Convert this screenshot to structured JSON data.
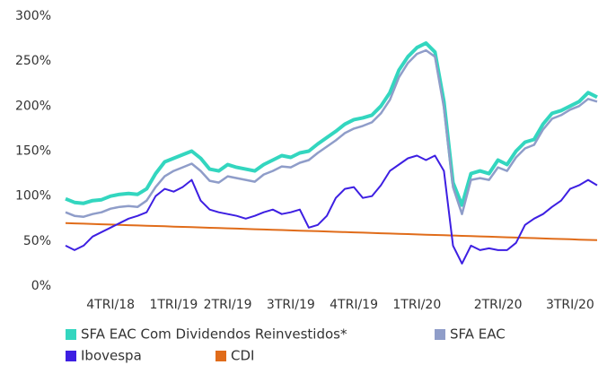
{
  "chart_data": {
    "type": "line",
    "categories": [
      null,
      null,
      null,
      null,
      null,
      "4TRI/18",
      null,
      null,
      null,
      null,
      null,
      null,
      "1TRI/19",
      null,
      null,
      null,
      null,
      null,
      "2TRI/19",
      null,
      null,
      null,
      null,
      null,
      null,
      "3TRI/19",
      null,
      null,
      null,
      null,
      null,
      null,
      "4TRI/19",
      null,
      null,
      null,
      null,
      null,
      null,
      "1TRI/20",
      null,
      null,
      null,
      null,
      null,
      null,
      null,
      null,
      "2TRI/20",
      null,
      null,
      null,
      null,
      null,
      null,
      null,
      "3TRI/20",
      null,
      null,
      null
    ],
    "series": [
      {
        "name": "SFA EAC Com Dividendos Reinvestidos*",
        "color": "#33d6bf",
        "values": [
          97,
          93,
          92,
          95,
          96,
          100,
          102,
          103,
          102,
          108,
          125,
          138,
          142,
          146,
          150,
          142,
          130,
          128,
          135,
          132,
          130,
          128,
          135,
          140,
          145,
          143,
          148,
          150,
          158,
          165,
          172,
          180,
          185,
          187,
          190,
          200,
          215,
          240,
          255,
          265,
          270,
          260,
          205,
          115,
          90,
          125,
          128,
          125,
          140,
          135,
          150,
          160,
          163,
          180,
          192,
          195,
          200,
          205,
          215,
          210
        ]
      },
      {
        "name": "SFA EAC",
        "color": "#8f9dc9",
        "values": [
          82,
          78,
          77,
          80,
          82,
          86,
          88,
          89,
          88,
          95,
          110,
          122,
          128,
          132,
          136,
          128,
          117,
          115,
          122,
          120,
          118,
          116,
          124,
          128,
          133,
          132,
          137,
          140,
          148,
          155,
          162,
          170,
          175,
          178,
          182,
          192,
          207,
          232,
          248,
          258,
          262,
          255,
          198,
          110,
          80,
          118,
          120,
          118,
          132,
          128,
          143,
          153,
          157,
          174,
          186,
          190,
          196,
          200,
          208,
          205
        ]
      },
      {
        "name": "Ibovespa",
        "color": "#3d1fe2",
        "values": [
          45,
          40,
          45,
          55,
          60,
          65,
          70,
          75,
          78,
          82,
          100,
          108,
          105,
          110,
          118,
          95,
          85,
          82,
          80,
          78,
          75,
          78,
          82,
          85,
          80,
          82,
          85,
          65,
          68,
          78,
          98,
          108,
          110,
          98,
          100,
          112,
          128,
          135,
          142,
          145,
          140,
          145,
          128,
          45,
          25,
          45,
          40,
          42,
          40,
          40,
          48,
          68,
          75,
          80,
          88,
          95,
          108,
          112,
          118,
          112
        ]
      },
      {
        "name": "CDI",
        "color": "#e06c1a",
        "values": [
          70,
          69.7,
          69.4,
          69.0,
          68.7,
          68.4,
          68.1,
          67.7,
          67.4,
          67.1,
          66.8,
          66.5,
          66.1,
          65.8,
          65.5,
          65.2,
          64.8,
          64.5,
          64.2,
          63.9,
          63.6,
          63.2,
          62.9,
          62.6,
          62.3,
          61.9,
          61.6,
          61.3,
          61.0,
          60.7,
          60.3,
          60.0,
          59.7,
          59.4,
          59.1,
          58.7,
          58.4,
          58.1,
          57.8,
          57.4,
          57.1,
          56.8,
          56.5,
          56.2,
          55.8,
          55.5,
          55.2,
          54.9,
          54.5,
          54.2,
          53.9,
          53.6,
          53.3,
          52.9,
          52.6,
          52.3,
          52.0,
          51.6,
          51.3,
          51.0
        ]
      }
    ],
    "ylim": [
      0,
      300
    ],
    "yticks": [
      {
        "value": 0,
        "label": "0%"
      },
      {
        "value": 50,
        "label": "50%"
      },
      {
        "value": 100,
        "label": "100%"
      },
      {
        "value": 150,
        "label": "150%"
      },
      {
        "value": 200,
        "label": "200%"
      },
      {
        "value": 250,
        "label": "250%"
      },
      {
        "value": 300,
        "label": "300%"
      }
    ],
    "grid": false
  }
}
